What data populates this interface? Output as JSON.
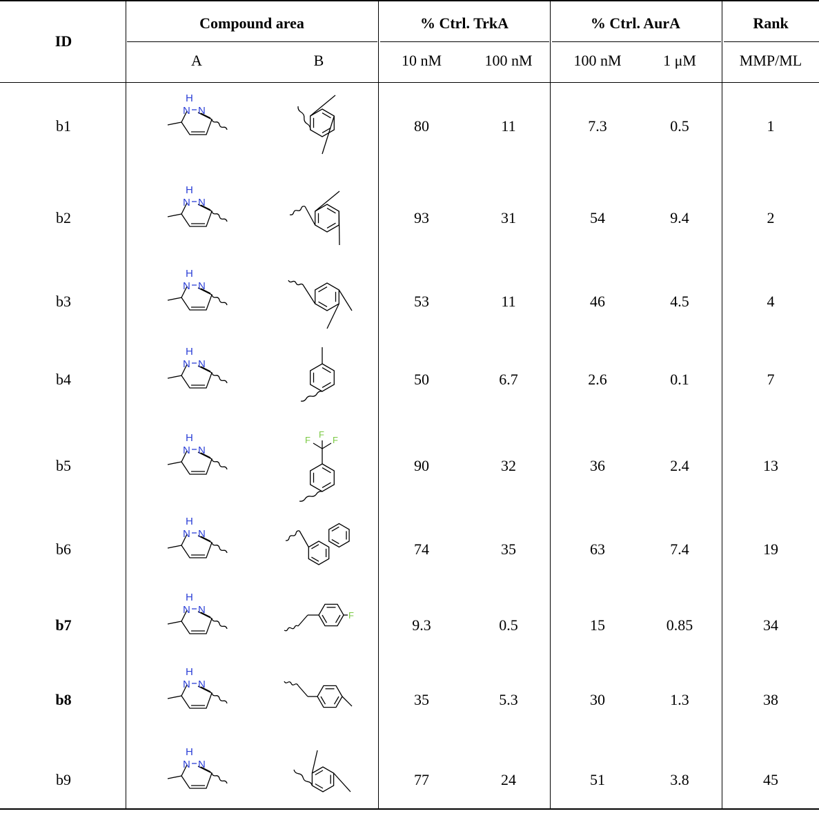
{
  "header": {
    "id": "ID",
    "compound_area": "Compound area",
    "col_a": "A",
    "col_b": "B",
    "trka": "% Ctrl. TrkA",
    "aura": "% Ctrl. AurA",
    "rank": "Rank",
    "trka_10": "10 nM",
    "trka_100": "100 nM",
    "aura_100": "100 nM",
    "aura_1": "1 μM",
    "rank_sub": "MMP/ML"
  },
  "atom_labels": {
    "h": "H",
    "n": "N",
    "f": "F"
  },
  "colors": {
    "nitrogen": "#2b3fd6",
    "fluorine": "#7ac943"
  },
  "rows": [
    {
      "id": "b1",
      "bold": false,
      "b_group": "2,5-dimethylphenyl",
      "trka_10": "80",
      "trka_100": "11",
      "aura_100": "7.3",
      "aura_1": "0.5",
      "rank": "1"
    },
    {
      "id": "b2",
      "bold": false,
      "b_group": "2,5-dimethylbenzyl",
      "trka_10": "93",
      "trka_100": "31",
      "aura_100": "54",
      "aura_1": "9.4",
      "rank": "2"
    },
    {
      "id": "b3",
      "bold": false,
      "b_group": "3,4-dimethylbenzyl",
      "trka_10": "53",
      "trka_100": "11",
      "aura_100": "46",
      "aura_1": "4.5",
      "rank": "4"
    },
    {
      "id": "b4",
      "bold": false,
      "b_group": "3-methylphenyl",
      "trka_10": "50",
      "trka_100": "6.7",
      "aura_100": "2.6",
      "aura_1": "0.1",
      "rank": "7"
    },
    {
      "id": "b5",
      "bold": false,
      "b_group": "3-trifluoromethylphenyl",
      "trka_10": "90",
      "trka_100": "32",
      "aura_100": "36",
      "aura_1": "2.4",
      "rank": "13"
    },
    {
      "id": "b6",
      "bold": false,
      "b_group": "1-naphthylmethyl",
      "trka_10": "74",
      "trka_100": "35",
      "aura_100": "63",
      "aura_1": "7.4",
      "rank": "19"
    },
    {
      "id": "b7",
      "bold": true,
      "b_group": "4-fluorobenzyl",
      "trka_10": "9.3",
      "trka_100": "0.5",
      "aura_100": "15",
      "aura_1": "0.85",
      "rank": "34"
    },
    {
      "id": "b8",
      "bold": true,
      "b_group": "4-methylbenzyl",
      "trka_10": "35",
      "trka_100": "5.3",
      "aura_100": "30",
      "aura_1": "1.3",
      "rank": "38"
    },
    {
      "id": "b9",
      "bold": false,
      "b_group": "2,4-dimethylphenyl",
      "trka_10": "77",
      "trka_100": "24",
      "aura_100": "51",
      "aura_1": "3.8",
      "rank": "45"
    }
  ]
}
